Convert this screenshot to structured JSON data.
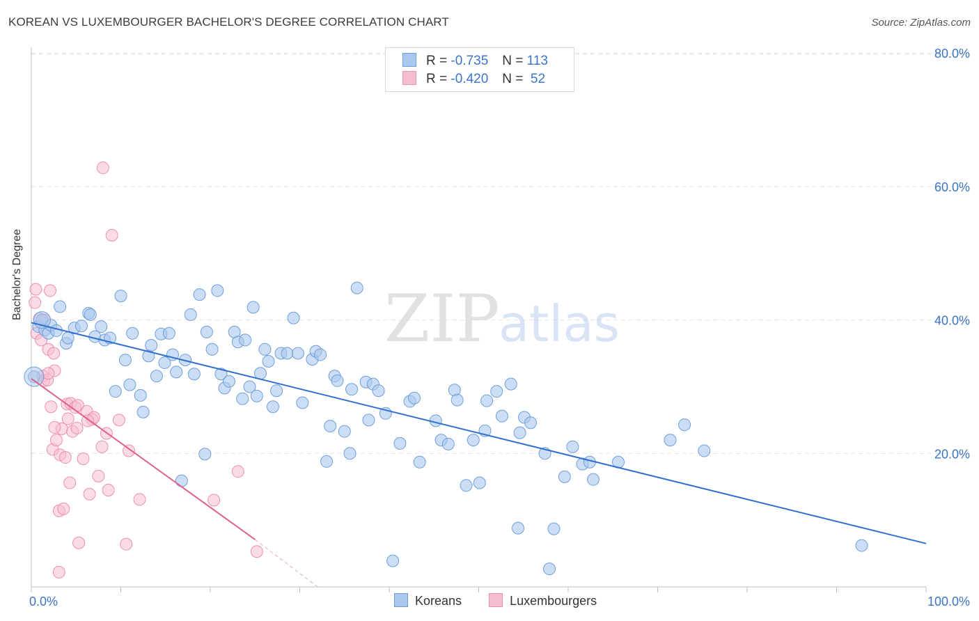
{
  "title": "KOREAN VS LUXEMBOURGER BACHELOR'S DEGREE CORRELATION CHART",
  "source": "Source: ZipAtlas.com",
  "watermark": {
    "zip": "ZIP",
    "atlas": "atlas"
  },
  "legend_top": [
    {
      "r_label": "R =",
      "r": "-0.735",
      "n_label": "N =",
      "n": "113"
    },
    {
      "r_label": "R =",
      "r": "-0.420",
      "n_label": "N =",
      "n": " 52"
    }
  ],
  "legend_bottom": [
    "Koreans",
    "Luxembourgers"
  ],
  "colors": {
    "koreans_fill": "#aac8ee",
    "koreans_stroke": "#6f9fd8",
    "koreans_line": "#2f6fce",
    "lux_fill": "#f7bed0",
    "lux_stroke": "#ec8fb0",
    "lux_line": "#e0608c",
    "tick_label": "#3b74c9",
    "grid": "#e3e3e3"
  },
  "chart_data": {
    "type": "scatter",
    "title": "KOREAN VS LUXEMBOURGER BACHELOR'S DEGREE CORRELATION CHART",
    "xlabel": "",
    "ylabel": "Bachelor's Degree",
    "xlim": [
      0,
      100
    ],
    "ylim": [
      0,
      84
    ],
    "x_tick_labels": [
      "0.0%",
      "100.0%"
    ],
    "y_ticks": [
      20,
      40,
      60,
      80
    ],
    "y_tick_labels": [
      "20.0%",
      "40.0%",
      "60.0%",
      "80.0%"
    ],
    "grid": true,
    "legend_position": "bottom-center",
    "series": [
      {
        "name": "Koreans",
        "R": -0.735,
        "N": 113,
        "trendline": {
          "x": [
            0,
            100
          ],
          "y": [
            39.6,
            6.5
          ]
        },
        "points": [
          [
            0.3,
            31.5
          ],
          [
            0.8,
            39
          ],
          [
            1.2,
            40
          ],
          [
            1.5,
            38.5
          ],
          [
            1.9,
            38
          ],
          [
            2.2,
            39.2
          ],
          [
            2.8,
            38.4
          ],
          [
            3.2,
            42
          ],
          [
            3.9,
            36.5
          ],
          [
            4.1,
            37.3
          ],
          [
            4.8,
            38.8
          ],
          [
            5.6,
            39.1
          ],
          [
            6.4,
            41
          ],
          [
            6.6,
            40.8
          ],
          [
            7.1,
            37.5
          ],
          [
            7.8,
            39
          ],
          [
            8.2,
            37
          ],
          [
            8.8,
            37.3
          ],
          [
            9.4,
            29.3
          ],
          [
            10,
            43.6
          ],
          [
            10.5,
            34
          ],
          [
            11,
            30.3
          ],
          [
            11.3,
            38
          ],
          [
            12.2,
            28.7
          ],
          [
            12.5,
            26.2
          ],
          [
            13.1,
            34.6
          ],
          [
            13.4,
            36.2
          ],
          [
            14,
            31.6
          ],
          [
            14.5,
            37.9
          ],
          [
            14.9,
            33.6
          ],
          [
            15.4,
            38
          ],
          [
            15.8,
            34.8
          ],
          [
            16.2,
            32.2
          ],
          [
            16.8,
            15.9
          ],
          [
            17.2,
            34
          ],
          [
            17.8,
            40.8
          ],
          [
            18.2,
            31.9
          ],
          [
            18.8,
            43.8
          ],
          [
            19.4,
            19.9
          ],
          [
            19.6,
            38.2
          ],
          [
            20.2,
            35.6
          ],
          [
            20.8,
            44.4
          ],
          [
            21.2,
            31.9
          ],
          [
            21.6,
            29.8
          ],
          [
            22.1,
            30.8
          ],
          [
            22.7,
            38.2
          ],
          [
            23.1,
            36.7
          ],
          [
            23.6,
            28.2
          ],
          [
            23.9,
            37
          ],
          [
            24.4,
            30
          ],
          [
            24.8,
            41.9
          ],
          [
            25.2,
            28.6
          ],
          [
            25.6,
            32
          ],
          [
            26.1,
            35.6
          ],
          [
            26.5,
            33.8
          ],
          [
            27,
            27
          ],
          [
            27.4,
            29.4
          ],
          [
            27.9,
            35
          ],
          [
            28.6,
            35
          ],
          [
            29.3,
            40.3
          ],
          [
            29.8,
            35
          ],
          [
            30.3,
            27.6
          ],
          [
            31.4,
            34.1
          ],
          [
            31.8,
            35.3
          ],
          [
            32.3,
            34.8
          ],
          [
            33,
            18.8
          ],
          [
            33.4,
            24.1
          ],
          [
            33.9,
            31.6
          ],
          [
            34.2,
            30.9
          ],
          [
            35,
            23.3
          ],
          [
            35.6,
            20
          ],
          [
            35.8,
            29.6
          ],
          [
            36.4,
            44.8
          ],
          [
            37.4,
            30.7
          ],
          [
            37.7,
            25
          ],
          [
            38.2,
            30.4
          ],
          [
            38.8,
            29.4
          ],
          [
            39.6,
            26
          ],
          [
            40.4,
            3.9
          ],
          [
            41.2,
            21.5
          ],
          [
            42.3,
            27.8
          ],
          [
            42.8,
            28.3
          ],
          [
            43.4,
            18.7
          ],
          [
            45.2,
            24.9
          ],
          [
            45.8,
            22
          ],
          [
            46.6,
            21.4
          ],
          [
            47.3,
            29.5
          ],
          [
            47.6,
            28
          ],
          [
            48.6,
            15.2
          ],
          [
            49.4,
            22
          ],
          [
            50.1,
            15.6
          ],
          [
            50.7,
            23.4
          ],
          [
            50.9,
            27.9
          ],
          [
            52,
            29.3
          ],
          [
            52.6,
            25.6
          ],
          [
            53.6,
            30.4
          ],
          [
            54.4,
            8.8
          ],
          [
            54.6,
            23.1
          ],
          [
            55.1,
            25.4
          ],
          [
            55.8,
            24.6
          ],
          [
            57.4,
            20
          ],
          [
            57.9,
            2.7
          ],
          [
            58.4,
            8.7
          ],
          [
            59.6,
            16.5
          ],
          [
            60.5,
            21
          ],
          [
            61.6,
            18.4
          ],
          [
            62.4,
            18.7
          ],
          [
            62.8,
            16.1
          ],
          [
            65.6,
            18.7
          ],
          [
            71.4,
            22
          ],
          [
            73,
            24.3
          ],
          [
            75.2,
            20.4
          ],
          [
            92.8,
            6.2
          ]
        ]
      },
      {
        "name": "Luxembourgers",
        "R": -0.42,
        "N": 52,
        "trendline": {
          "x": [
            0,
            25
          ],
          "y": [
            31.2,
            7.1
          ]
        },
        "trendline_dashed": {
          "x": [
            25,
            32
          ],
          "y": [
            7.1,
            0
          ]
        },
        "points": [
          [
            0.4,
            42.6
          ],
          [
            0.5,
            44.6
          ],
          [
            0.6,
            38
          ],
          [
            0.9,
            40.2
          ],
          [
            1.1,
            37
          ],
          [
            1.3,
            31.6
          ],
          [
            1.4,
            30.9
          ],
          [
            1.5,
            40
          ],
          [
            1.8,
            31
          ],
          [
            1.9,
            35.6
          ],
          [
            2.1,
            44.4
          ],
          [
            2.2,
            27
          ],
          [
            2.4,
            20.6
          ],
          [
            2.5,
            35
          ],
          [
            2.6,
            32.4
          ],
          [
            2.8,
            22
          ],
          [
            3.1,
            11.4
          ],
          [
            3.1,
            2.2
          ],
          [
            3.2,
            19.8
          ],
          [
            3.4,
            23.7
          ],
          [
            3.6,
            11.7
          ],
          [
            3.8,
            19.4
          ],
          [
            4,
            27.4
          ],
          [
            4.1,
            25.2
          ],
          [
            4.3,
            15.6
          ],
          [
            4.4,
            27.5
          ],
          [
            4.6,
            23.3
          ],
          [
            4.9,
            26.9
          ],
          [
            5.1,
            23.8
          ],
          [
            5.2,
            27.2
          ],
          [
            5.3,
            6.6
          ],
          [
            5.8,
            19.2
          ],
          [
            6.2,
            26.3
          ],
          [
            6.5,
            13.9
          ],
          [
            6.8,
            25.1
          ],
          [
            7,
            25.4
          ],
          [
            7.5,
            16.6
          ],
          [
            7.9,
            21
          ],
          [
            8,
            62.8
          ],
          [
            8.4,
            23
          ],
          [
            8.6,
            14.5
          ],
          [
            9,
            52.7
          ],
          [
            9.8,
            25
          ],
          [
            10.6,
            6.4
          ],
          [
            10.9,
            20.4
          ],
          [
            12.1,
            13.1
          ],
          [
            20.4,
            13
          ],
          [
            23.1,
            17.3
          ],
          [
            25.2,
            5.3
          ],
          [
            1.9,
            32
          ],
          [
            2.6,
            23.9
          ],
          [
            6.3,
            24.9
          ]
        ]
      }
    ]
  }
}
